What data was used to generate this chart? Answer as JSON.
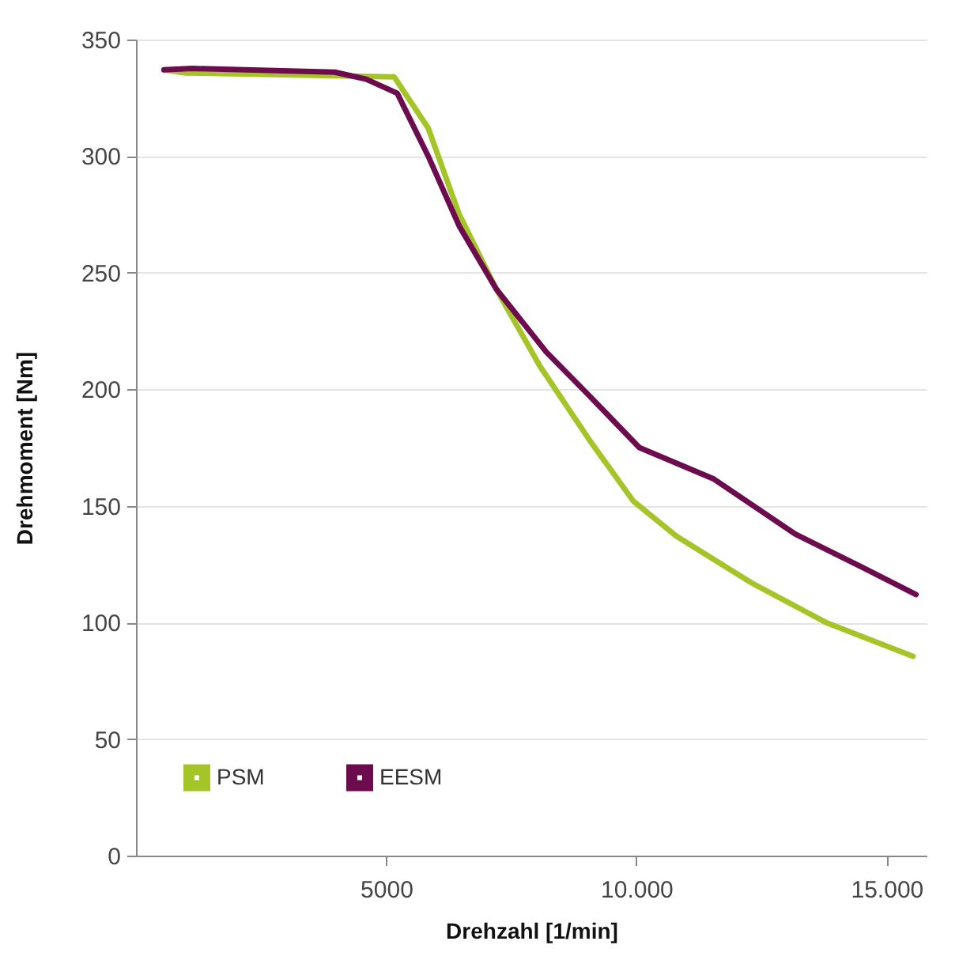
{
  "chart_data": {
    "type": "line",
    "xlabel": "Drehzahl [1/min]",
    "ylabel": "Drehmoment [Nm]",
    "xlim": [
      0,
      15800
    ],
    "xticks": [
      5000,
      {
        "value": 10000,
        "label": "10.000"
      },
      {
        "value": 15000,
        "label": "15.000"
      }
    ],
    "ylim": [
      0,
      350
    ],
    "yticks": [
      0,
      50,
      100,
      150,
      200,
      250,
      300,
      350
    ],
    "grid": "y",
    "legend": "bottom left",
    "marker": "none",
    "line_style": "solid",
    "series": [
      {
        "name": "PSM",
        "color": "#a5c428",
        "x": [
          560,
          990,
          5160,
          5840,
          6460,
          7200,
          8070,
          9070,
          9940,
          10800,
          12300,
          13790,
          15530
        ],
        "values": [
          337,
          335.7,
          334,
          312,
          275,
          243,
          210,
          178,
          152,
          137,
          117,
          100,
          85.5
        ]
      },
      {
        "name": "EESM",
        "color": "#6d0b4f",
        "x": [
          560,
          1120,
          3975,
          4600,
          5220,
          5840,
          6460,
          7200,
          8200,
          9070,
          10060,
          11550,
          13170,
          14530,
          15590
        ],
        "values": [
          337,
          337.6,
          336,
          333,
          327,
          300,
          270,
          243,
          216,
          197,
          175,
          161.5,
          138,
          123.5,
          112
        ]
      }
    ]
  }
}
